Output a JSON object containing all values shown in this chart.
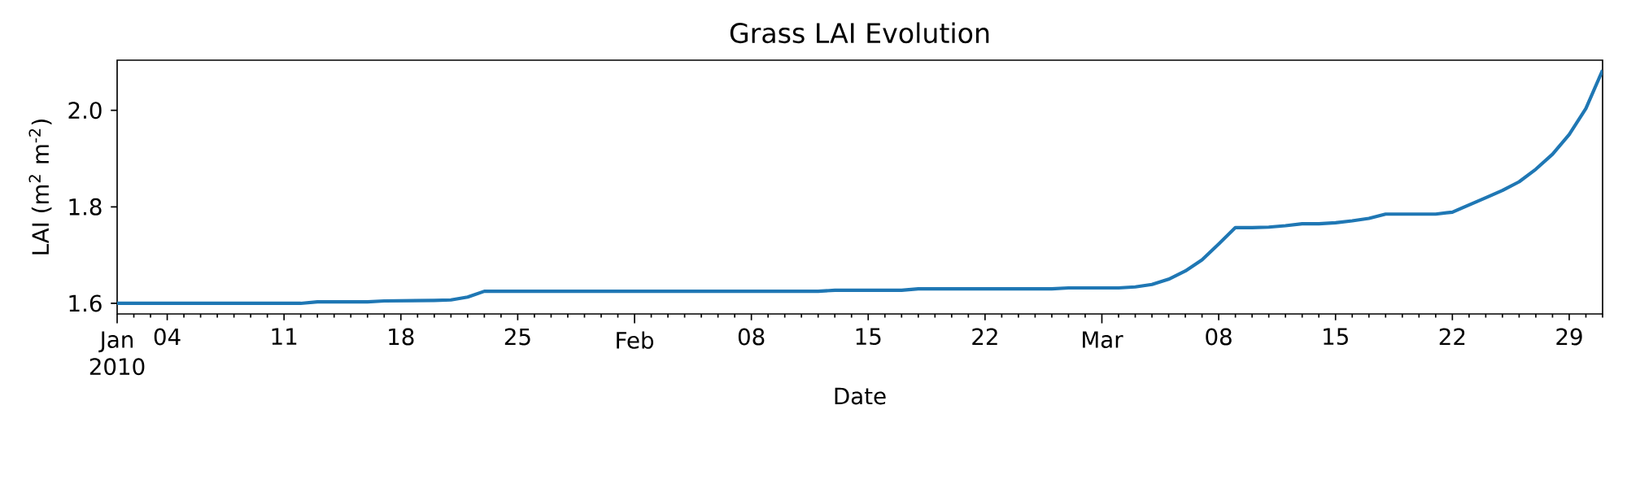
{
  "chart_data": {
    "type": "line",
    "title": "Grass LAI Evolution",
    "xlabel": "Date",
    "ylabel": "LAI (m$^{2}$ m$^{-2}$)",
    "color": "#1f77b4",
    "x": [
      "2010-01-01",
      "2010-01-12",
      "2010-01-13",
      "2010-01-16",
      "2010-01-17",
      "2010-01-20",
      "2010-01-21",
      "2010-01-22",
      "2010-01-23",
      "2010-02-12",
      "2010-02-13",
      "2010-02-17",
      "2010-02-18",
      "2010-02-26",
      "2010-02-27",
      "2010-03-02",
      "2010-03-03",
      "2010-03-04",
      "2010-03-05",
      "2010-03-06",
      "2010-03-07",
      "2010-03-08",
      "2010-03-09",
      "2010-03-10",
      "2010-03-11",
      "2010-03-12",
      "2010-03-13",
      "2010-03-14",
      "2010-03-15",
      "2010-03-16",
      "2010-03-17",
      "2010-03-18",
      "2010-03-21",
      "2010-03-22",
      "2010-03-23",
      "2010-03-24",
      "2010-03-25",
      "2010-03-26",
      "2010-03-27",
      "2010-03-28",
      "2010-03-29",
      "2010-03-30",
      "2010-03-31"
    ],
    "values": [
      1.6,
      1.6,
      1.603,
      1.603,
      1.605,
      1.606,
      1.607,
      1.613,
      1.625,
      1.625,
      1.627,
      1.627,
      1.63,
      1.63,
      1.632,
      1.632,
      1.634,
      1.639,
      1.65,
      1.667,
      1.69,
      1.723,
      1.757,
      1.757,
      1.758,
      1.761,
      1.765,
      1.765,
      1.767,
      1.771,
      1.776,
      1.785,
      1.785,
      1.789,
      1.804,
      1.819,
      1.834,
      1.852,
      1.878,
      1.909,
      1.95,
      2.004,
      2.083
    ],
    "xlim": [
      "2010-01-01",
      "2010-03-31"
    ],
    "ylim": [
      1.578,
      2.104
    ],
    "yticks": [
      {
        "value": 1.6,
        "label": "1.6"
      },
      {
        "value": 1.8,
        "label": "1.8"
      },
      {
        "value": 2.0,
        "label": "2.0"
      }
    ],
    "xticks": [
      {
        "value": "2010-01-01",
        "label": "Jan 2010"
      },
      {
        "value": "2010-01-04",
        "label": "04"
      },
      {
        "value": "2010-01-11",
        "label": "11"
      },
      {
        "value": "2010-01-18",
        "label": "18"
      },
      {
        "value": "2010-01-25",
        "label": "25"
      },
      {
        "value": "2010-02-01",
        "label": "Feb"
      },
      {
        "value": "2010-02-08",
        "label": "08"
      },
      {
        "value": "2010-02-15",
        "label": "15"
      },
      {
        "value": "2010-02-22",
        "label": "22"
      },
      {
        "value": "2010-03-01",
        "label": "Mar"
      },
      {
        "value": "2010-03-08",
        "label": "08"
      },
      {
        "value": "2010-03-15",
        "label": "15"
      },
      {
        "value": "2010-03-22",
        "label": "22"
      },
      {
        "value": "2010-03-29",
        "label": "29"
      },
      {
        "value": "2010-01-02",
        "label": null
      },
      {
        "value": "2010-01-03",
        "label": null
      },
      {
        "value": "2010-01-05",
        "label": null
      },
      {
        "value": "2010-01-06",
        "label": null
      },
      {
        "value": "2010-01-07",
        "label": null
      },
      {
        "value": "2010-01-08",
        "label": null
      },
      {
        "value": "2010-01-09",
        "label": null
      },
      {
        "value": "2010-01-10",
        "label": null
      },
      {
        "value": "2010-01-12",
        "label": null
      },
      {
        "value": "2010-01-13",
        "label": null
      },
      {
        "value": "2010-01-14",
        "label": null
      },
      {
        "value": "2010-01-15",
        "label": null
      },
      {
        "value": "2010-01-16",
        "label": null
      },
      {
        "value": "2010-01-17",
        "label": null
      },
      {
        "value": "2010-01-19",
        "label": null
      },
      {
        "value": "2010-01-20",
        "label": null
      },
      {
        "value": "2010-01-21",
        "label": null
      },
      {
        "value": "2010-01-22",
        "label": null
      },
      {
        "value": "2010-01-23",
        "label": null
      },
      {
        "value": "2010-01-24",
        "label": null
      },
      {
        "value": "2010-01-26",
        "label": null
      },
      {
        "value": "2010-01-27",
        "label": null
      },
      {
        "value": "2010-01-28",
        "label": null
      },
      {
        "value": "2010-01-29",
        "label": null
      },
      {
        "value": "2010-01-30",
        "label": null
      },
      {
        "value": "2010-01-31",
        "label": null
      },
      {
        "value": "2010-02-02",
        "label": null
      },
      {
        "value": "2010-02-03",
        "label": null
      },
      {
        "value": "2010-02-04",
        "label": null
      },
      {
        "value": "2010-02-05",
        "label": null
      },
      {
        "value": "2010-02-06",
        "label": null
      },
      {
        "value": "2010-02-07",
        "label": null
      },
      {
        "value": "2010-02-09",
        "label": null
      },
      {
        "value": "2010-02-10",
        "label": null
      },
      {
        "value": "2010-02-11",
        "label": null
      },
      {
        "value": "2010-02-12",
        "label": null
      },
      {
        "value": "2010-02-13",
        "label": null
      },
      {
        "value": "2010-02-14",
        "label": null
      },
      {
        "value": "2010-02-16",
        "label": null
      },
      {
        "value": "2010-02-17",
        "label": null
      },
      {
        "value": "2010-02-18",
        "label": null
      },
      {
        "value": "2010-02-19",
        "label": null
      },
      {
        "value": "2010-02-20",
        "label": null
      },
      {
        "value": "2010-02-21",
        "label": null
      },
      {
        "value": "2010-02-23",
        "label": null
      },
      {
        "value": "2010-02-24",
        "label": null
      },
      {
        "value": "2010-02-25",
        "label": null
      },
      {
        "value": "2010-02-26",
        "label": null
      },
      {
        "value": "2010-02-27",
        "label": null
      },
      {
        "value": "2010-02-28",
        "label": null
      },
      {
        "value": "2010-03-02",
        "label": null
      },
      {
        "value": "2010-03-03",
        "label": null
      },
      {
        "value": "2010-03-04",
        "label": null
      },
      {
        "value": "2010-03-05",
        "label": null
      },
      {
        "value": "2010-03-06",
        "label": null
      },
      {
        "value": "2010-03-07",
        "label": null
      },
      {
        "value": "2010-03-09",
        "label": null
      },
      {
        "value": "2010-03-10",
        "label": null
      },
      {
        "value": "2010-03-11",
        "label": null
      },
      {
        "value": "2010-03-12",
        "label": null
      },
      {
        "value": "2010-03-13",
        "label": null
      },
      {
        "value": "2010-03-14",
        "label": null
      },
      {
        "value": "2010-03-16",
        "label": null
      },
      {
        "value": "2010-03-17",
        "label": null
      },
      {
        "value": "2010-03-18",
        "label": null
      },
      {
        "value": "2010-03-19",
        "label": null
      },
      {
        "value": "2010-03-20",
        "label": null
      },
      {
        "value": "2010-03-21",
        "label": null
      },
      {
        "value": "2010-03-23",
        "label": null
      },
      {
        "value": "2010-03-24",
        "label": null
      },
      {
        "value": "2010-03-25",
        "label": null
      },
      {
        "value": "2010-03-26",
        "label": null
      },
      {
        "value": "2010-03-27",
        "label": null
      },
      {
        "value": "2010-03-28",
        "label": null
      },
      {
        "value": "2010-03-30",
        "label": null
      },
      {
        "value": "2010-03-31",
        "label": null
      }
    ]
  }
}
